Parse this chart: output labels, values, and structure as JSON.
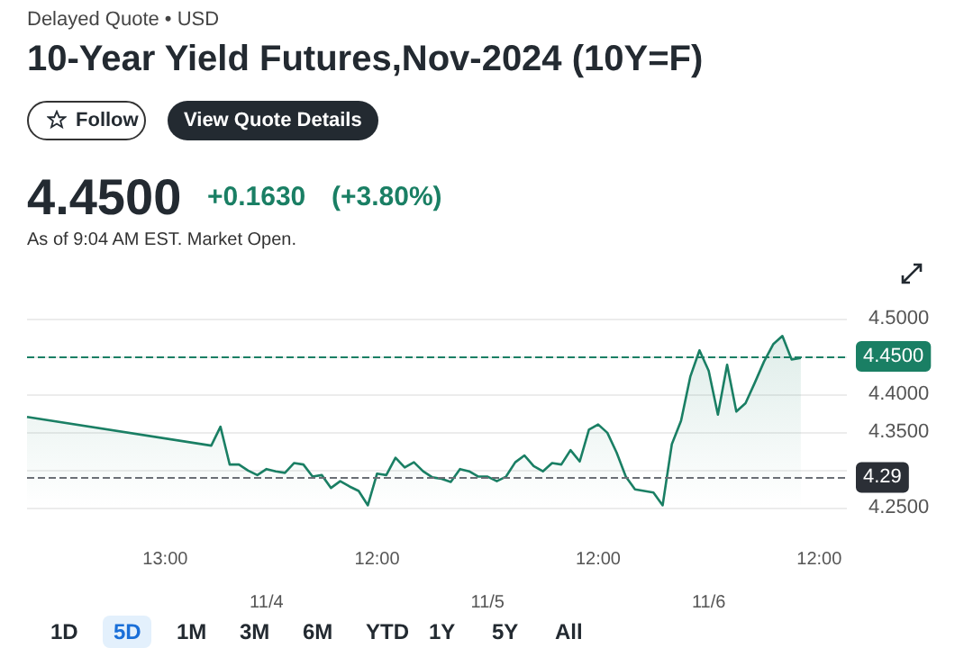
{
  "chart_data": {
    "type": "area",
    "title": "10-Year Yield Futures,Nov-2024 (10Y=F)",
    "subtitle": "Delayed Quote • USD",
    "annotations": [
      "Follow",
      "View Quote Details",
      "4.4500",
      "+0.1630",
      "(+3.80%)",
      "As of 9:04 AM EST. Market Open.",
      "1D",
      "5D",
      "1M",
      "3M",
      "6M",
      "YTD",
      "1Y",
      "5Y",
      "All"
    ],
    "categories": [
      null,
      null,
      null,
      null,
      null,
      null,
      null,
      null,
      null,
      null,
      null,
      null,
      null,
      null,
      null,
      "13:00",
      null,
      null,
      null,
      null,
      null,
      null,
      null,
      null,
      null,
      null,
      "11/4",
      null,
      null,
      null,
      null,
      null,
      null,
      null,
      null,
      null,
      null,
      null,
      "12:00",
      null,
      null,
      null,
      null,
      null,
      null,
      null,
      null,
      null,
      null,
      null,
      "11/5",
      null,
      null,
      null,
      null,
      null,
      null,
      null,
      null,
      null,
      null,
      null,
      "12:00",
      null,
      null,
      null,
      null,
      null,
      null,
      null,
      null,
      null,
      null,
      null,
      "11/6",
      null,
      null,
      null,
      null,
      null,
      null,
      null,
      null,
      null,
      null,
      null,
      "12:00",
      null,
      null,
      null
    ],
    "series": [
      {
        "color": "#1a7f64",
        "values": [
          4.37,
          null,
          null,
          null,
          null,
          null,
          null,
          null,
          null,
          null,
          null,
          null,
          null,
          null,
          null,
          null,
          null,
          null,
          null,
          null,
          4.332,
          4.357,
          4.307,
          4.307,
          4.299,
          4.293,
          4.301,
          4.298,
          4.296,
          4.309,
          4.307,
          4.291,
          4.293,
          4.276,
          4.285,
          4.278,
          4.272,
          4.253,
          4.295,
          4.293,
          4.316,
          4.303,
          4.31,
          4.298,
          4.29,
          4.288,
          4.284,
          4.301,
          4.298,
          4.291,
          4.291,
          4.285,
          4.291,
          4.31,
          4.319,
          4.305,
          4.298,
          4.309,
          4.307,
          4.326,
          4.311,
          4.353,
          4.36,
          4.349,
          4.323,
          4.291,
          4.274,
          4.272,
          4.27,
          4.253,
          4.334,
          4.365,
          4.423,
          4.458,
          4.431,
          4.373,
          4.439,
          4.377,
          4.388,
          4.415,
          4.443,
          4.466,
          4.477,
          4.446,
          4.448,
          null,
          null,
          null,
          null,
          null
        ]
      }
    ],
    "ylim": [
      4.25,
      4.5
    ],
    "yticks": [
      {
        "value": 4.25,
        "label": "4.2500"
      },
      {
        "value": 4.3,
        "label": null
      },
      {
        "value": 4.35,
        "label": "4.3500"
      },
      {
        "value": 4.4,
        "label": "4.4000"
      },
      {
        "value": 4.45,
        "label": null
      },
      {
        "value": 4.5,
        "label": "4.5000"
      }
    ],
    "ref_lines": [
      {
        "axis": "y",
        "value": 4.45,
        "label": "4.4500",
        "color": "#1a7f64",
        "line_style": "dashed"
      },
      {
        "axis": "y",
        "value": 4.29,
        "label": "4.29",
        "color": "#6b6f76",
        "line_style": "dashed"
      }
    ],
    "grid": "y",
    "marker": "none"
  }
}
